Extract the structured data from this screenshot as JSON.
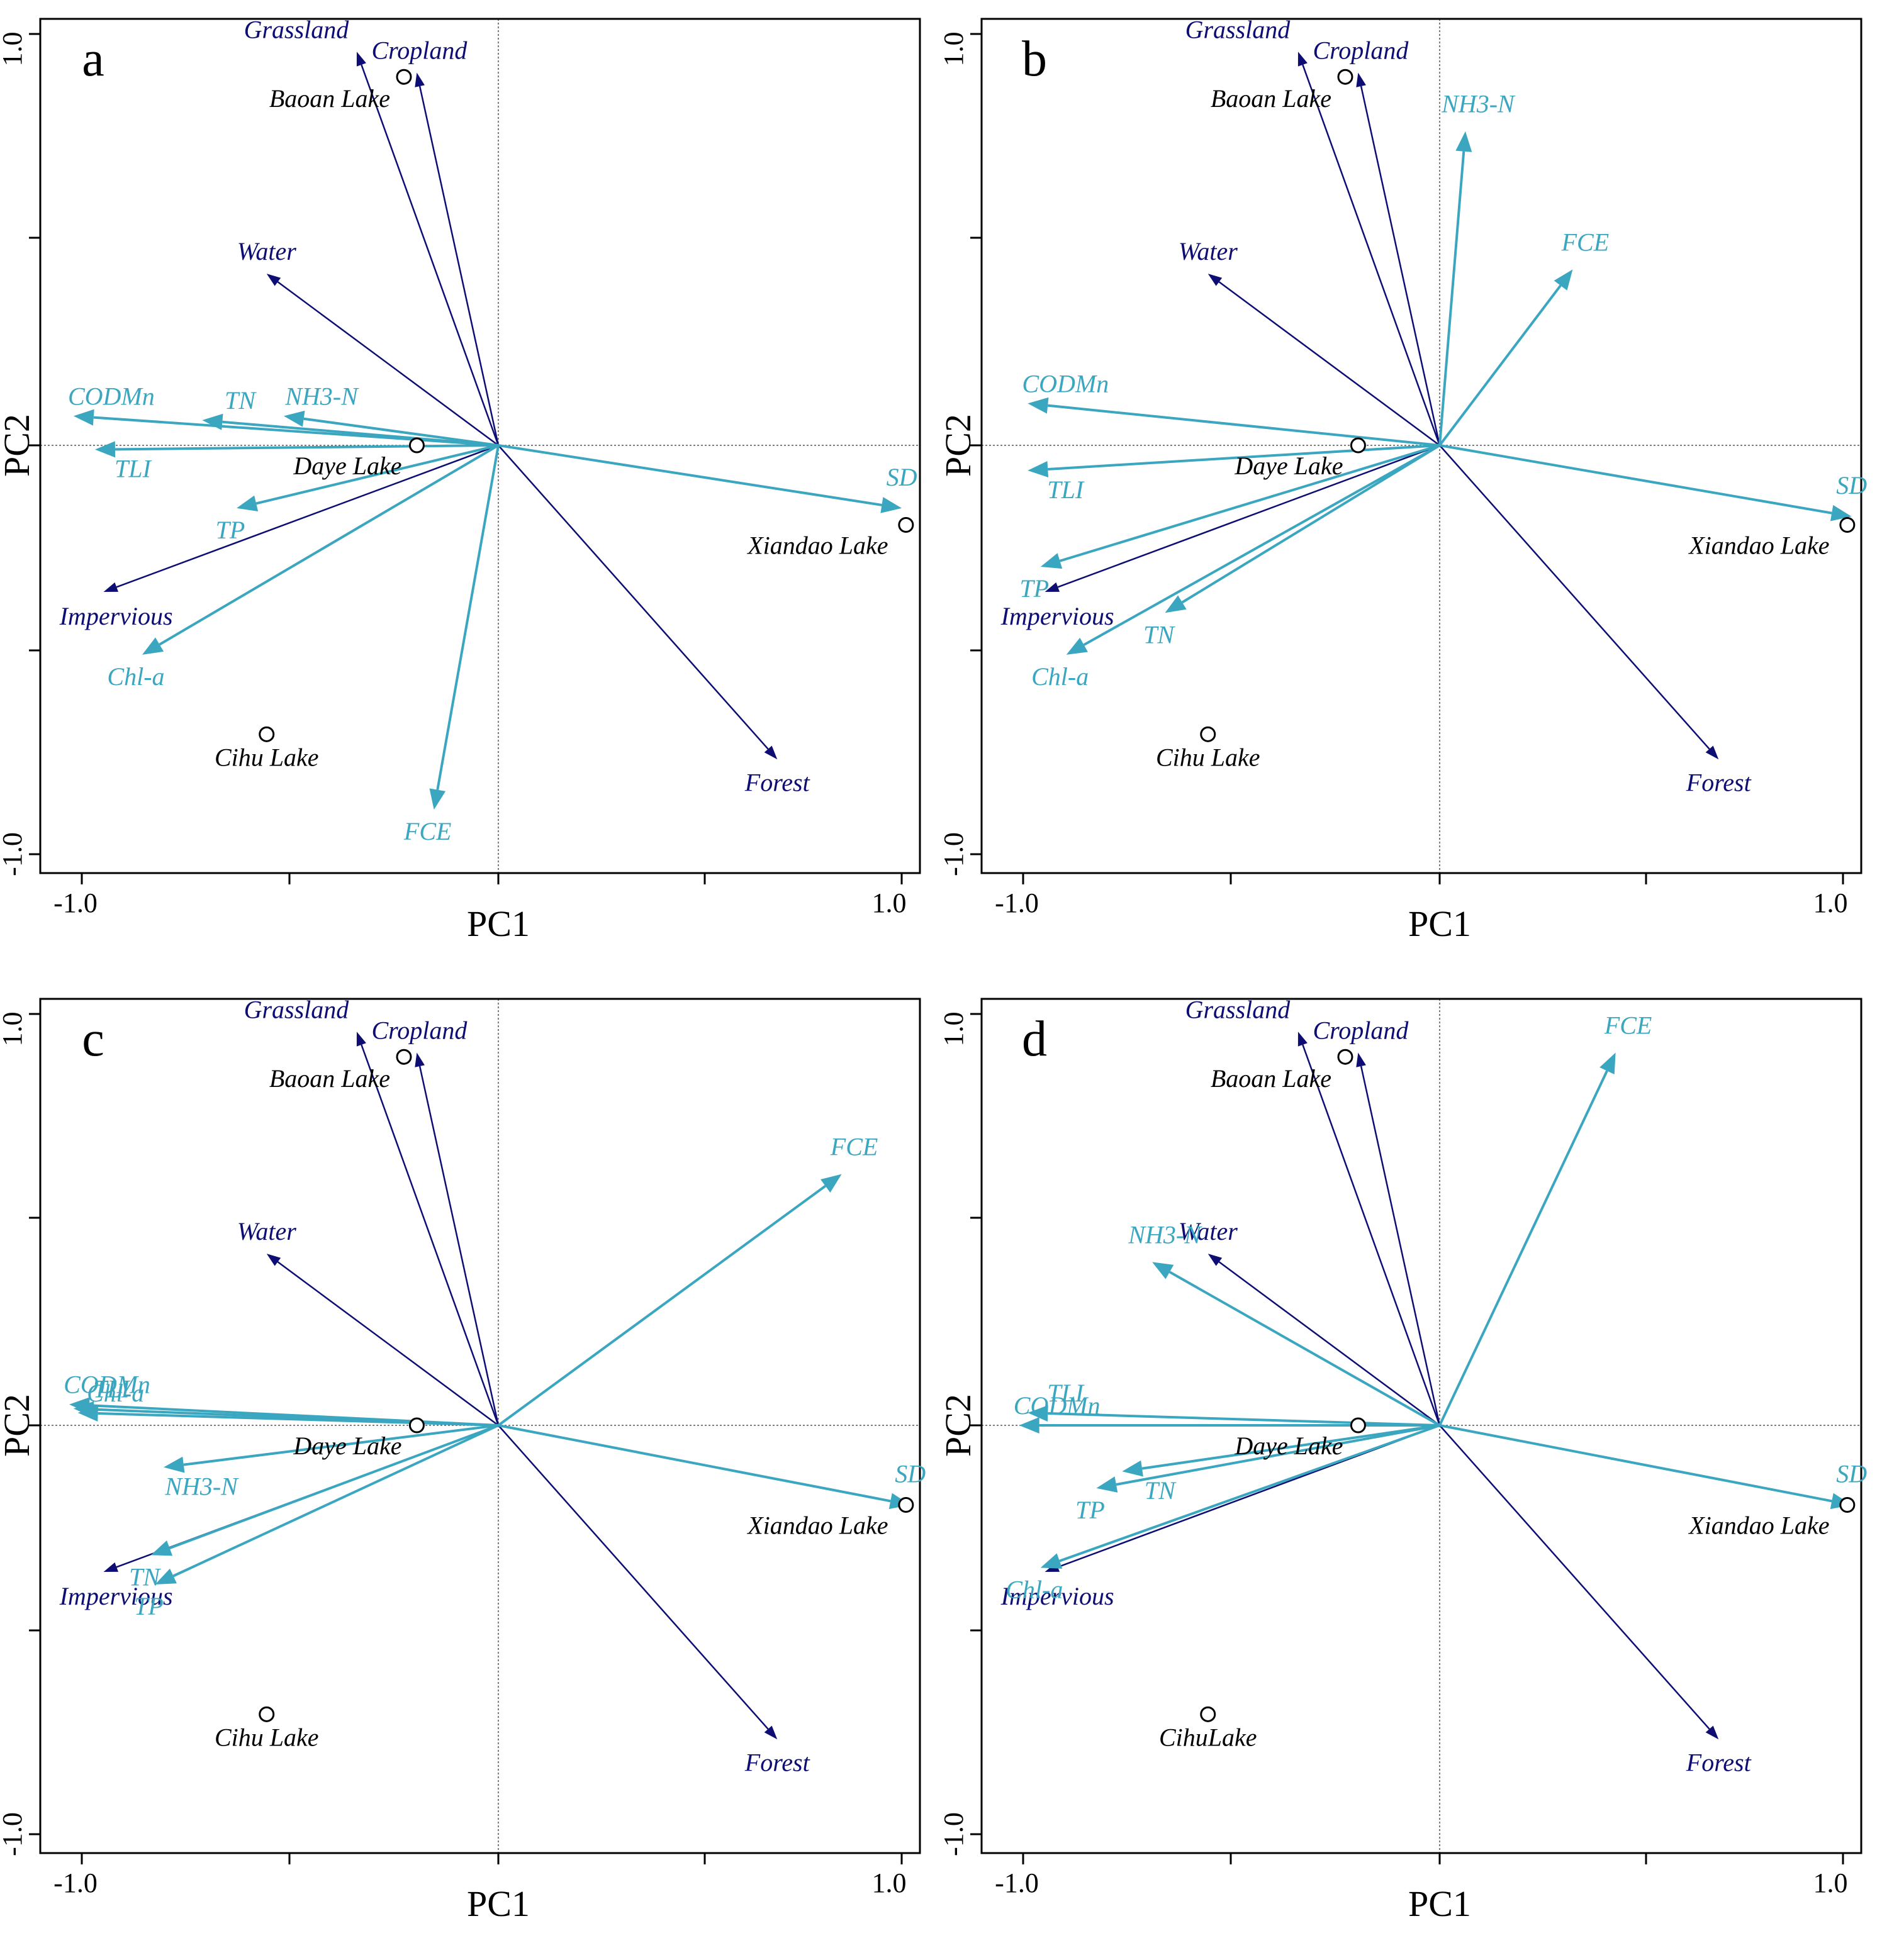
{
  "colors": {
    "env": "#0d0d73",
    "wq": "#3aa6bf",
    "site": "#000000"
  },
  "chart_data": [
    {
      "type": "scatter",
      "panel": "a",
      "xlabel": "PC1",
      "ylabel": "PC2",
      "xlim": [
        -1.0,
        1.0
      ],
      "ylim": [
        -1.0,
        1.0
      ],
      "x_tick_labels": [
        "-1.0",
        "1.0"
      ],
      "y_tick_labels": [
        "-1.0",
        "1.0"
      ],
      "grid": false,
      "sites": [
        {
          "name": "Baoan Lake",
          "x": -0.22,
          "y": 0.88
        },
        {
          "name": "Daye Lake",
          "x": -0.19,
          "y": 0.0
        },
        {
          "name": "Xiandao Lake",
          "x": 0.95,
          "y": -0.19
        },
        {
          "name": "Cihu Lake",
          "x": -0.54,
          "y": -0.69
        }
      ],
      "env_vectors": [
        {
          "name": "Grassland",
          "x": -0.33,
          "y": 0.94
        },
        {
          "name": "Cropland",
          "x": -0.19,
          "y": 0.89
        },
        {
          "name": "Water",
          "x": -0.54,
          "y": 0.41
        },
        {
          "name": "Impervious",
          "x": -0.92,
          "y": -0.35
        },
        {
          "name": "Forest",
          "x": 0.65,
          "y": -0.75
        }
      ],
      "wq_vectors": [
        {
          "name": "CODMn",
          "x": -0.99,
          "y": 0.07
        },
        {
          "name": "TN",
          "x": -0.69,
          "y": 0.06
        },
        {
          "name": "NH3-N",
          "x": -0.5,
          "y": 0.07
        },
        {
          "name": "TLI",
          "x": -0.94,
          "y": -0.01
        },
        {
          "name": "TP",
          "x": -0.61,
          "y": -0.15
        },
        {
          "name": "Chl-a",
          "x": -0.83,
          "y": -0.5
        },
        {
          "name": "FCE",
          "x": -0.15,
          "y": -0.87
        },
        {
          "name": "SD",
          "x": 0.94,
          "y": -0.15
        }
      ]
    },
    {
      "type": "scatter",
      "panel": "b",
      "xlabel": "PC1",
      "ylabel": "PC2",
      "xlim": [
        -1.0,
        1.0
      ],
      "ylim": [
        -1.0,
        1.0
      ],
      "x_tick_labels": [
        "-1.0",
        "1.0"
      ],
      "y_tick_labels": [
        "-1.0",
        "1.0"
      ],
      "grid": false,
      "sites": [
        {
          "name": "Baoan Lake",
          "x": -0.22,
          "y": 0.88
        },
        {
          "name": "Daye Lake",
          "x": -0.19,
          "y": 0.0
        },
        {
          "name": "Xiandao Lake",
          "x": 0.95,
          "y": -0.19
        },
        {
          "name": "Cihu Lake",
          "x": -0.54,
          "y": -0.69
        }
      ],
      "env_vectors": [
        {
          "name": "Grassland",
          "x": -0.33,
          "y": 0.94
        },
        {
          "name": "Cropland",
          "x": -0.19,
          "y": 0.89
        },
        {
          "name": "Water",
          "x": -0.54,
          "y": 0.41
        },
        {
          "name": "Impervious",
          "x": -0.92,
          "y": -0.35
        },
        {
          "name": "Forest",
          "x": 0.65,
          "y": -0.75
        }
      ],
      "wq_vectors": [
        {
          "name": "NH3-N",
          "x": 0.06,
          "y": 0.75
        },
        {
          "name": "FCE",
          "x": 0.31,
          "y": 0.42
        },
        {
          "name": "CODMn",
          "x": -0.96,
          "y": 0.1
        },
        {
          "name": "TLI",
          "x": -0.96,
          "y": -0.06
        },
        {
          "name": "TP",
          "x": -0.93,
          "y": -0.29
        },
        {
          "name": "TN",
          "x": -0.64,
          "y": -0.4
        },
        {
          "name": "Chl-a",
          "x": -0.87,
          "y": -0.5
        },
        {
          "name": "SD",
          "x": 0.96,
          "y": -0.17
        }
      ]
    },
    {
      "type": "scatter",
      "panel": "c",
      "xlabel": "PC1",
      "ylabel": "PC2",
      "xlim": [
        -1.0,
        1.0
      ],
      "ylim": [
        -1.0,
        1.0
      ],
      "x_tick_labels": [
        "-1.0",
        "1.0"
      ],
      "y_tick_labels": [
        "-1.0",
        "1.0"
      ],
      "grid": false,
      "sites": [
        {
          "name": "Baoan Lake",
          "x": -0.22,
          "y": 0.88
        },
        {
          "name": "Daye Lake",
          "x": -0.19,
          "y": 0.0
        },
        {
          "name": "Xiandao Lake",
          "x": 0.95,
          "y": -0.19
        },
        {
          "name": "Cihu Lake",
          "x": -0.54,
          "y": -0.69
        }
      ],
      "env_vectors": [
        {
          "name": "Grassland",
          "x": -0.33,
          "y": 0.94
        },
        {
          "name": "Cropland",
          "x": -0.19,
          "y": 0.89
        },
        {
          "name": "Water",
          "x": -0.54,
          "y": 0.41
        },
        {
          "name": "Impervious",
          "x": -0.92,
          "y": -0.35
        },
        {
          "name": "Forest",
          "x": 0.65,
          "y": -0.75
        }
      ],
      "wq_vectors": [
        {
          "name": "FCE",
          "x": 0.8,
          "y": 0.6
        },
        {
          "name": "CODMn",
          "x": -1.0,
          "y": 0.05
        },
        {
          "name": "TLI",
          "x": -0.99,
          "y": 0.04
        },
        {
          "name": "Chl-a",
          "x": -0.98,
          "y": 0.03
        },
        {
          "name": "NH3-N",
          "x": -0.78,
          "y": -0.1
        },
        {
          "name": "TN",
          "x": -0.81,
          "y": -0.31
        },
        {
          "name": "TP",
          "x": -0.8,
          "y": -0.38
        },
        {
          "name": "SD",
          "x": 0.96,
          "y": -0.19
        }
      ]
    },
    {
      "type": "scatter",
      "panel": "d",
      "xlabel": "PC1",
      "ylabel": "PC2",
      "xlim": [
        -1.0,
        1.0
      ],
      "ylim": [
        -1.0,
        1.0
      ],
      "x_tick_labels": [
        "-1.0",
        "1.0"
      ],
      "y_tick_labels": [
        "-1.0",
        "1.0"
      ],
      "grid": false,
      "sites": [
        {
          "name": "Baoan Lake",
          "x": -0.22,
          "y": 0.88
        },
        {
          "name": "Daye Lake",
          "x": -0.19,
          "y": 0.0
        },
        {
          "name": "Xiandao Lake",
          "x": 0.95,
          "y": -0.19
        },
        {
          "name": "CihuLake",
          "x": -0.54,
          "y": -0.69
        }
      ],
      "env_vectors": [
        {
          "name": "Grassland",
          "x": -0.33,
          "y": 0.94
        },
        {
          "name": "Cropland",
          "x": -0.19,
          "y": 0.89
        },
        {
          "name": "Water",
          "x": -0.54,
          "y": 0.41
        },
        {
          "name": "Impervious",
          "x": -0.92,
          "y": -0.35
        },
        {
          "name": "Forest",
          "x": 0.65,
          "y": -0.75
        }
      ],
      "wq_vectors": [
        {
          "name": "FCE",
          "x": 0.41,
          "y": 0.89
        },
        {
          "name": "NH3-N",
          "x": -0.67,
          "y": 0.39
        },
        {
          "name": "TLI",
          "x": -0.96,
          "y": 0.03
        },
        {
          "name": "CODMn",
          "x": -0.98,
          "y": 0.0
        },
        {
          "name": "TN",
          "x": -0.74,
          "y": -0.11
        },
        {
          "name": "TP",
          "x": -0.8,
          "y": -0.15
        },
        {
          "name": "Chl-a",
          "x": -0.93,
          "y": -0.34
        },
        {
          "name": "SD",
          "x": 0.96,
          "y": -0.19
        }
      ]
    }
  ]
}
